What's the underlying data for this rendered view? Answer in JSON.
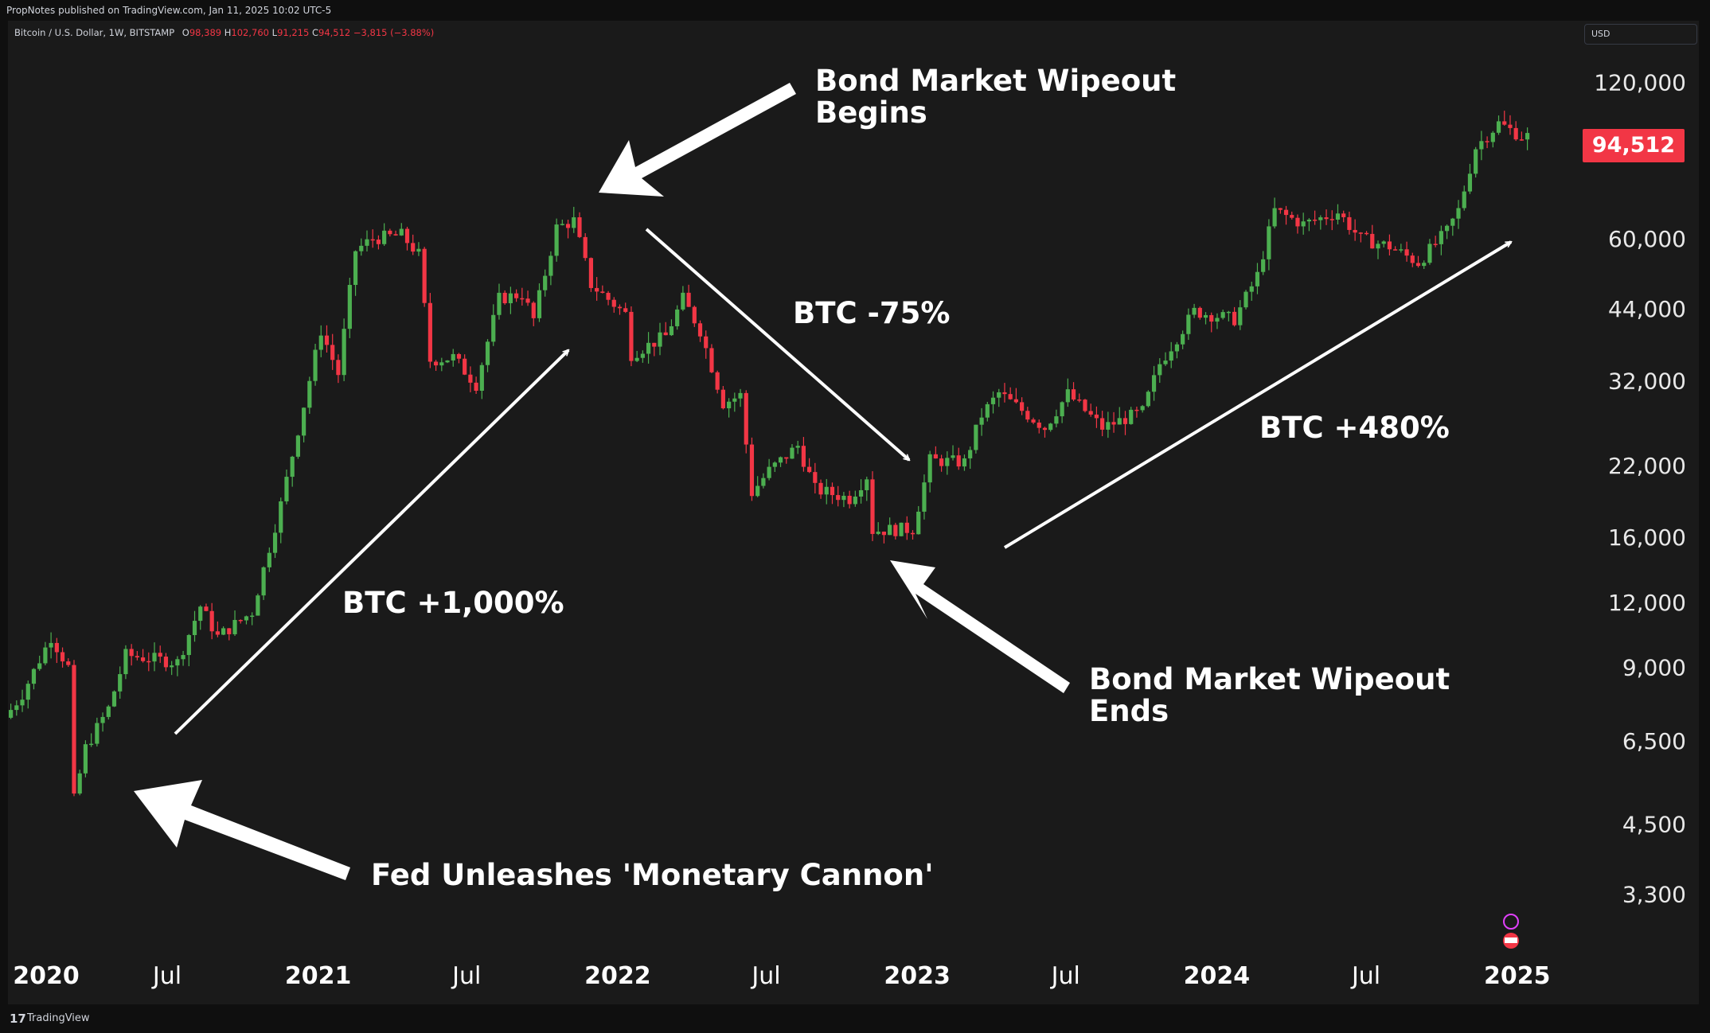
{
  "header": {
    "published_line": "PropNotes published on TradingView.com, Jan 11, 2025 10:02 UTC-5",
    "symbol": "Bitcoin / U.S. Dollar, 1W, BITSTAMP",
    "open_label": "O",
    "open_value": "98,389",
    "high_label": "H",
    "high_value": "102,760",
    "low_label": "L",
    "low_value": "91,215",
    "close_label": "C",
    "close_value": "94,512",
    "change_value": "−3,815 (−3.88%)",
    "currency": "USD"
  },
  "footer": {
    "brand": "TradingView"
  },
  "colors": {
    "up": "#22ab94",
    "up_green": "#4caf50",
    "down": "#f23645",
    "background": "#1a1a1a"
  },
  "chart_data": {
    "type": "candlestick",
    "y_scale": "log",
    "ylim": [
      2900,
      150000
    ],
    "x_range": [
      "2019-12-20",
      "2025-01-10"
    ],
    "last_price": "94,512",
    "y_ticks": [
      {
        "value": 120000,
        "label": "120,000"
      },
      {
        "value": 60000,
        "label": "60,000"
      },
      {
        "value": 44000,
        "label": "44,000"
      },
      {
        "value": 32000,
        "label": "32,000"
      },
      {
        "value": 22000,
        "label": "22,000"
      },
      {
        "value": 16000,
        "label": "16,000"
      },
      {
        "value": 12000,
        "label": "12,000"
      },
      {
        "value": 9000,
        "label": "9,000"
      },
      {
        "value": 6500,
        "label": "6,500"
      },
      {
        "value": 4500,
        "label": "4,500"
      },
      {
        "value": 3300,
        "label": "3,300"
      }
    ],
    "x_ticks": [
      {
        "date": "2020-01-01",
        "label": "2020",
        "year": true
      },
      {
        "date": "2020-07-01",
        "label": "Jul",
        "year": false
      },
      {
        "date": "2021-01-01",
        "label": "2021",
        "year": true
      },
      {
        "date": "2021-07-01",
        "label": "Jul",
        "year": false
      },
      {
        "date": "2022-01-01",
        "label": "2022",
        "year": true
      },
      {
        "date": "2022-07-01",
        "label": "Jul",
        "year": false
      },
      {
        "date": "2023-01-01",
        "label": "2023",
        "year": true
      },
      {
        "date": "2023-07-01",
        "label": "Jul",
        "year": false
      },
      {
        "date": "2024-01-01",
        "label": "2024",
        "year": true
      },
      {
        "date": "2024-07-01",
        "label": "Jul",
        "year": false
      },
      {
        "date": "2025-01-01",
        "label": "2025",
        "year": true
      }
    ],
    "price_path": [
      [
        "2019-12-20",
        7200
      ],
      [
        "2020-01-10",
        8000
      ],
      [
        "2020-02-14",
        10300
      ],
      [
        "2020-03-06",
        9000
      ],
      [
        "2020-03-13",
        5000
      ],
      [
        "2020-03-27",
        6300
      ],
      [
        "2020-04-24",
        7500
      ],
      [
        "2020-05-15",
        9500
      ],
      [
        "2020-07-17",
        9200
      ],
      [
        "2020-08-14",
        11800
      ],
      [
        "2020-09-04",
        10300
      ],
      [
        "2020-10-16",
        11500
      ],
      [
        "2020-11-20",
        18500
      ],
      [
        "2021-01-08",
        40000
      ],
      [
        "2021-01-29",
        33000
      ],
      [
        "2021-02-19",
        57000
      ],
      [
        "2021-03-12",
        60000
      ],
      [
        "2021-04-16",
        61000
      ],
      [
        "2021-05-07",
        56000
      ],
      [
        "2021-05-21",
        35000
      ],
      [
        "2021-06-18",
        35500
      ],
      [
        "2021-07-16",
        31500
      ],
      [
        "2021-08-13",
        46000
      ],
      [
        "2021-09-10",
        47000
      ],
      [
        "2021-09-24",
        42000
      ],
      [
        "2021-10-22",
        63000
      ],
      [
        "2021-11-12",
        65000
      ],
      [
        "2021-12-03",
        49000
      ],
      [
        "2022-01-14",
        43000
      ],
      [
        "2022-01-21",
        36000
      ],
      [
        "2022-03-04",
        39000
      ],
      [
        "2022-03-25",
        46000
      ],
      [
        "2022-04-15",
        40000
      ],
      [
        "2022-05-13",
        29000
      ],
      [
        "2022-06-03",
        30000
      ],
      [
        "2022-06-17",
        19500
      ],
      [
        "2022-07-08",
        21500
      ],
      [
        "2022-08-12",
        24000
      ],
      [
        "2022-09-02",
        19800
      ],
      [
        "2022-10-14",
        19000
      ],
      [
        "2022-11-04",
        21000
      ],
      [
        "2022-11-11",
        16500
      ],
      [
        "2022-12-30",
        16600
      ],
      [
        "2023-01-20",
        22500
      ],
      [
        "2023-03-03",
        22300
      ],
      [
        "2023-03-24",
        27500
      ],
      [
        "2023-04-14",
        30300
      ],
      [
        "2023-06-09",
        26000
      ],
      [
        "2023-07-07",
        30200
      ],
      [
        "2023-08-18",
        26000
      ],
      [
        "2023-10-06",
        27900
      ],
      [
        "2023-10-27",
        34500
      ],
      [
        "2023-12-08",
        43500
      ],
      [
        "2024-01-26",
        42000
      ],
      [
        "2024-02-23",
        51000
      ],
      [
        "2024-03-15",
        68000
      ],
      [
        "2024-04-19",
        64000
      ],
      [
        "2024-05-31",
        67500
      ],
      [
        "2024-06-28",
        60000
      ],
      [
        "2024-08-02",
        58000
      ],
      [
        "2024-09-06",
        54000
      ],
      [
        "2024-10-11",
        62000
      ],
      [
        "2024-10-25",
        68000
      ],
      [
        "2024-11-15",
        90000
      ],
      [
        "2024-12-13",
        100000
      ],
      [
        "2025-01-10",
        94512
      ]
    ]
  },
  "annotations": {
    "top_line1": "Bond Market Wipeout",
    "top_line2": "Begins",
    "drop": "BTC -75%",
    "rise1": "BTC +1,000%",
    "rise2": "BTC +480%",
    "bottom_line1": "Bond Market Wipeout",
    "bottom_line2": "Ends",
    "fed": "Fed Unleashes 'Monetary Cannon'"
  }
}
